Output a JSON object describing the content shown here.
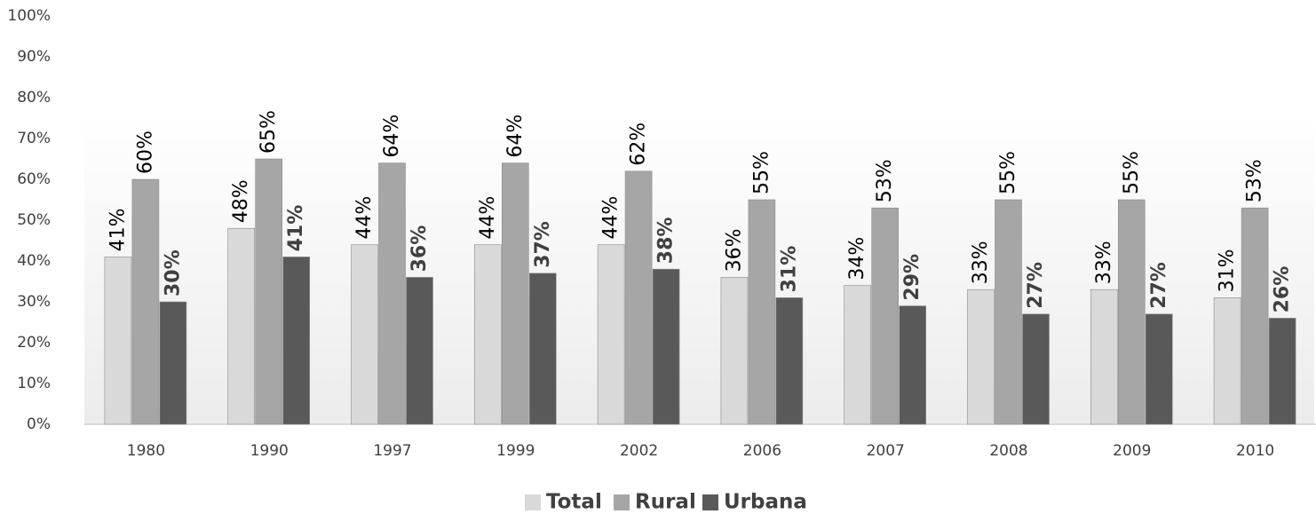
{
  "chart_data": {
    "type": "bar",
    "categories": [
      "1980",
      "1990",
      "1997",
      "1999",
      "2002",
      "2006",
      "2007",
      "2008",
      "2009",
      "2010"
    ],
    "series": [
      {
        "name": "Total",
        "color": "#d9d9d9",
        "values": [
          41,
          48,
          44,
          44,
          44,
          36,
          34,
          33,
          33,
          31
        ],
        "value_labels": [
          "41%",
          "48%",
          "44%",
          "44%",
          "44%",
          "36%",
          "34%",
          "33%",
          "33%",
          "31%"
        ]
      },
      {
        "name": "Rural",
        "color": "#a6a6a6",
        "values": [
          60,
          65,
          64,
          64,
          62,
          55,
          53,
          55,
          55,
          53
        ],
        "value_labels": [
          "60%",
          "65%",
          "64%",
          "64%",
          "62%",
          "55%",
          "53%",
          "55%",
          "55%",
          "53%"
        ]
      },
      {
        "name": "Urbana",
        "color": "#595959",
        "values": [
          30,
          41,
          36,
          37,
          38,
          31,
          29,
          27,
          27,
          26
        ],
        "value_labels": [
          "30%",
          "41%",
          "36%",
          "37%",
          "38%",
          "31%",
          "29%",
          "27%",
          "27%",
          "26%"
        ]
      }
    ],
    "ylim": [
      0,
      100
    ],
    "yticks": [
      {
        "value": 0,
        "label": "0%"
      },
      {
        "value": 10,
        "label": "10%"
      },
      {
        "value": 20,
        "label": "20%"
      },
      {
        "value": 30,
        "label": "30%"
      },
      {
        "value": 40,
        "label": "40%"
      },
      {
        "value": 50,
        "label": "50%"
      },
      {
        "value": 60,
        "label": "60%"
      },
      {
        "value": 70,
        "label": "70%"
      },
      {
        "value": 80,
        "label": "80%"
      },
      {
        "value": 90,
        "label": "90%"
      },
      {
        "value": 100,
        "label": "100%"
      }
    ],
    "grid": false,
    "legend": "bottom"
  }
}
